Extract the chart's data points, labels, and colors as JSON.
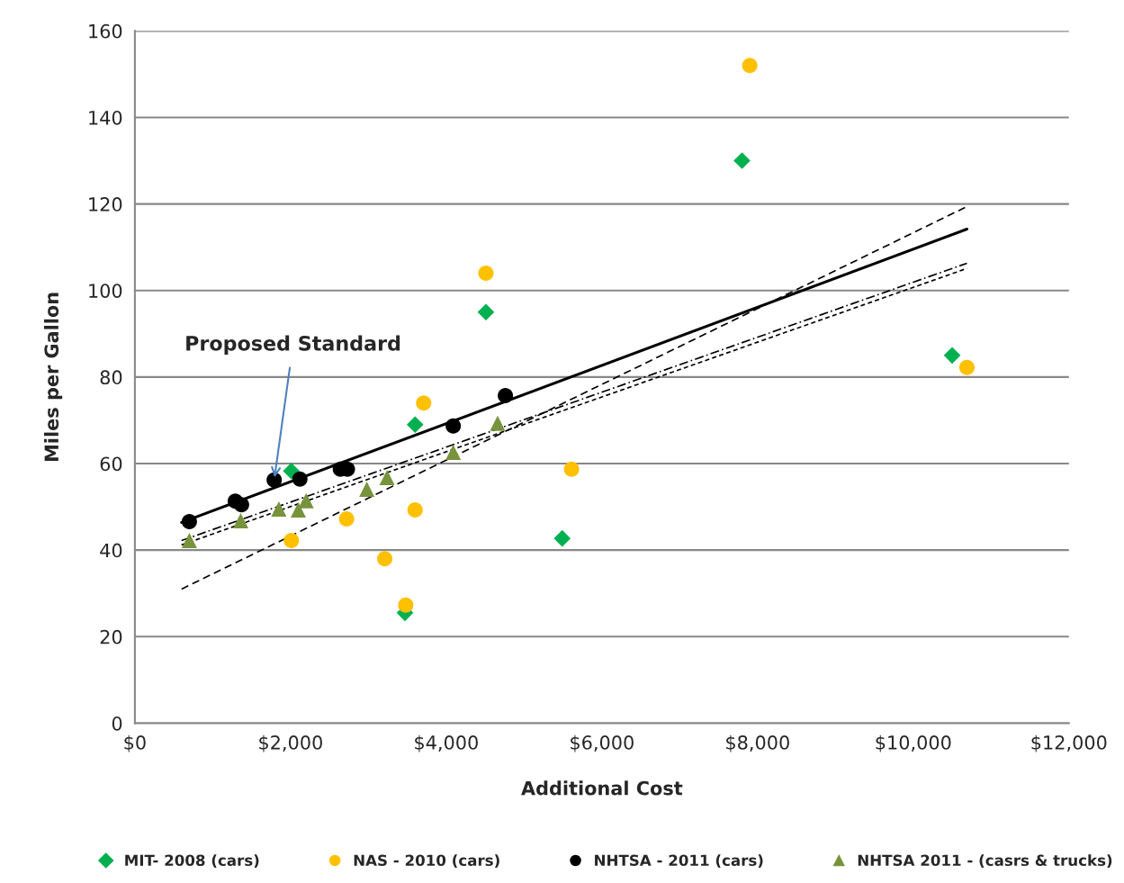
{
  "chart_data": {
    "type": "scatter",
    "xlabel": "Additional Cost",
    "ylabel": "Miles per Gallon",
    "xlim": [
      0,
      12000
    ],
    "ylim": [
      0,
      160
    ],
    "xticks": [
      {
        "value": 0,
        "label": "$0"
      },
      {
        "value": 2000,
        "label": "$2,000"
      },
      {
        "value": 4000,
        "label": "$4,000"
      },
      {
        "value": 6000,
        "label": "$6,000"
      },
      {
        "value": 8000,
        "label": "$8,000"
      },
      {
        "value": 10000,
        "label": "$10,000"
      },
      {
        "value": 12000,
        "label": "$12,000"
      }
    ],
    "yticks": [
      0,
      20,
      40,
      60,
      80,
      100,
      120,
      140,
      160
    ],
    "grid": "y",
    "legend": "bottom",
    "annotations": [
      {
        "text": "Proposed Standard",
        "x": 1790,
        "y": 56.2
      }
    ],
    "series": [
      {
        "name": "MIT- 2008 (cars)",
        "color": "#00b050",
        "marker": "diamond",
        "x": [
          2010,
          3600,
          4510,
          3470,
          5490,
          7800,
          10500
        ],
        "values": [
          58.3,
          69,
          95,
          25.5,
          42.7,
          130,
          85
        ]
      },
      {
        "name": "NAS - 2010 (cars)",
        "color": "#ffc000",
        "marker": "circle",
        "x": [
          2010,
          2720,
          3210,
          3480,
          3600,
          3710,
          4510,
          5610,
          7900,
          10690
        ],
        "values": [
          42.2,
          47.2,
          38,
          27.3,
          49.3,
          74,
          104,
          58.7,
          152,
          82.2
        ]
      },
      {
        "name": "NHTSA - 2011 (cars)",
        "color": "#000000",
        "marker": "circle",
        "x": [
          700,
          1290,
          1370,
          1790,
          2120,
          2640,
          2730,
          4090,
          4760
        ],
        "values": [
          46.6,
          51.3,
          50.5,
          56.2,
          56.4,
          58.7,
          58.7,
          68.7,
          75.7
        ]
      },
      {
        "name": "NHTSA 2011 - (casrs & trucks)",
        "color": "#77933c",
        "marker": "triangle",
        "x": [
          700,
          1360,
          1850,
          2100,
          2200,
          2980,
          3240,
          4090,
          4660
        ],
        "values": [
          42.2,
          46.8,
          49.5,
          49.3,
          51.4,
          54.1,
          56.8,
          62.6,
          69.3
        ]
      },
      {
        "type": "line",
        "color": "#000000",
        "line_style": "solid",
        "x": [
          600,
          10690
        ],
        "values": [
          46.4,
          114.2
        ]
      },
      {
        "type": "line",
        "color": "#000000",
        "line_style": "dashed",
        "x": [
          600,
          10690
        ],
        "values": [
          31,
          119.4
        ]
      },
      {
        "type": "line",
        "color": "#000000",
        "line_style": "dashdot",
        "x": [
          600,
          10690
        ],
        "values": [
          42.2,
          106.3
        ]
      },
      {
        "type": "line",
        "color": "#000000",
        "line_style": "dotted",
        "x": [
          600,
          10690
        ],
        "values": [
          41.2,
          105.1
        ]
      }
    ]
  }
}
